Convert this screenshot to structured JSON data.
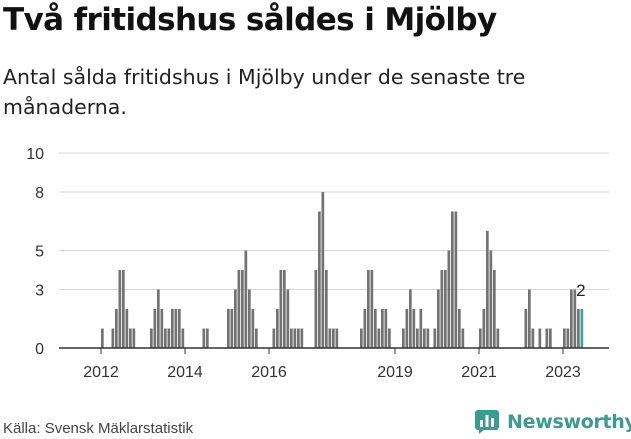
{
  "title": "Två fritidshus såldes i Mjölby",
  "subtitle": "Antal sålda fritidshus i Mjölby under de senaste tre månaderna.",
  "source": "Källa: Svensk Mäklarstatistik",
  "brand": {
    "name": "Newsworthy",
    "icon": "bar-chart-bubble-icon",
    "color": "#3d9a8f"
  },
  "colors": {
    "bar": "#737373",
    "highlight": "#3aa39b",
    "grid": "#d7d7d7",
    "axis": "#333333"
  },
  "chart_data": {
    "type": "bar",
    "title": "Två fritidshus såldes i Mjölby",
    "xlabel": "",
    "ylabel": "",
    "ylim": [
      0,
      10
    ],
    "yticks": [
      0,
      3,
      5,
      8,
      10
    ],
    "grid": true,
    "xticks": [
      "2012",
      "2014",
      "2016",
      "2019",
      "2021",
      "2023"
    ],
    "x_start": "2011-01",
    "values": [
      0,
      0,
      0,
      0,
      0,
      0,
      0,
      0,
      0,
      0,
      0,
      0,
      1,
      0,
      0,
      1,
      2,
      4,
      4,
      2,
      1,
      1,
      0,
      0,
      0,
      0,
      1,
      2,
      3,
      2,
      1,
      1,
      2,
      2,
      2,
      1,
      0,
      0,
      0,
      0,
      0,
      1,
      1,
      0,
      0,
      0,
      0,
      0,
      2,
      2,
      3,
      4,
      4,
      5,
      3,
      2,
      1,
      0,
      0,
      0,
      0,
      1,
      2,
      4,
      4,
      3,
      1,
      1,
      1,
      1,
      0,
      0,
      0,
      4,
      7,
      8,
      4,
      1,
      1,
      1,
      0,
      0,
      0,
      0,
      0,
      0,
      1,
      2,
      4,
      4,
      2,
      1,
      2,
      2,
      1,
      0,
      0,
      0,
      1,
      2,
      3,
      2,
      1,
      2,
      1,
      1,
      0,
      1,
      3,
      4,
      4,
      5,
      7,
      7,
      2,
      1,
      0,
      0,
      0,
      0,
      1,
      2,
      6,
      5,
      4,
      1,
      0,
      0,
      0,
      0,
      0,
      0,
      0,
      2,
      3,
      1,
      0,
      1,
      0,
      1,
      1,
      0,
      0,
      0,
      1,
      1,
      3,
      3,
      2,
      2
    ],
    "highlight_last": true,
    "last_label": "2"
  }
}
